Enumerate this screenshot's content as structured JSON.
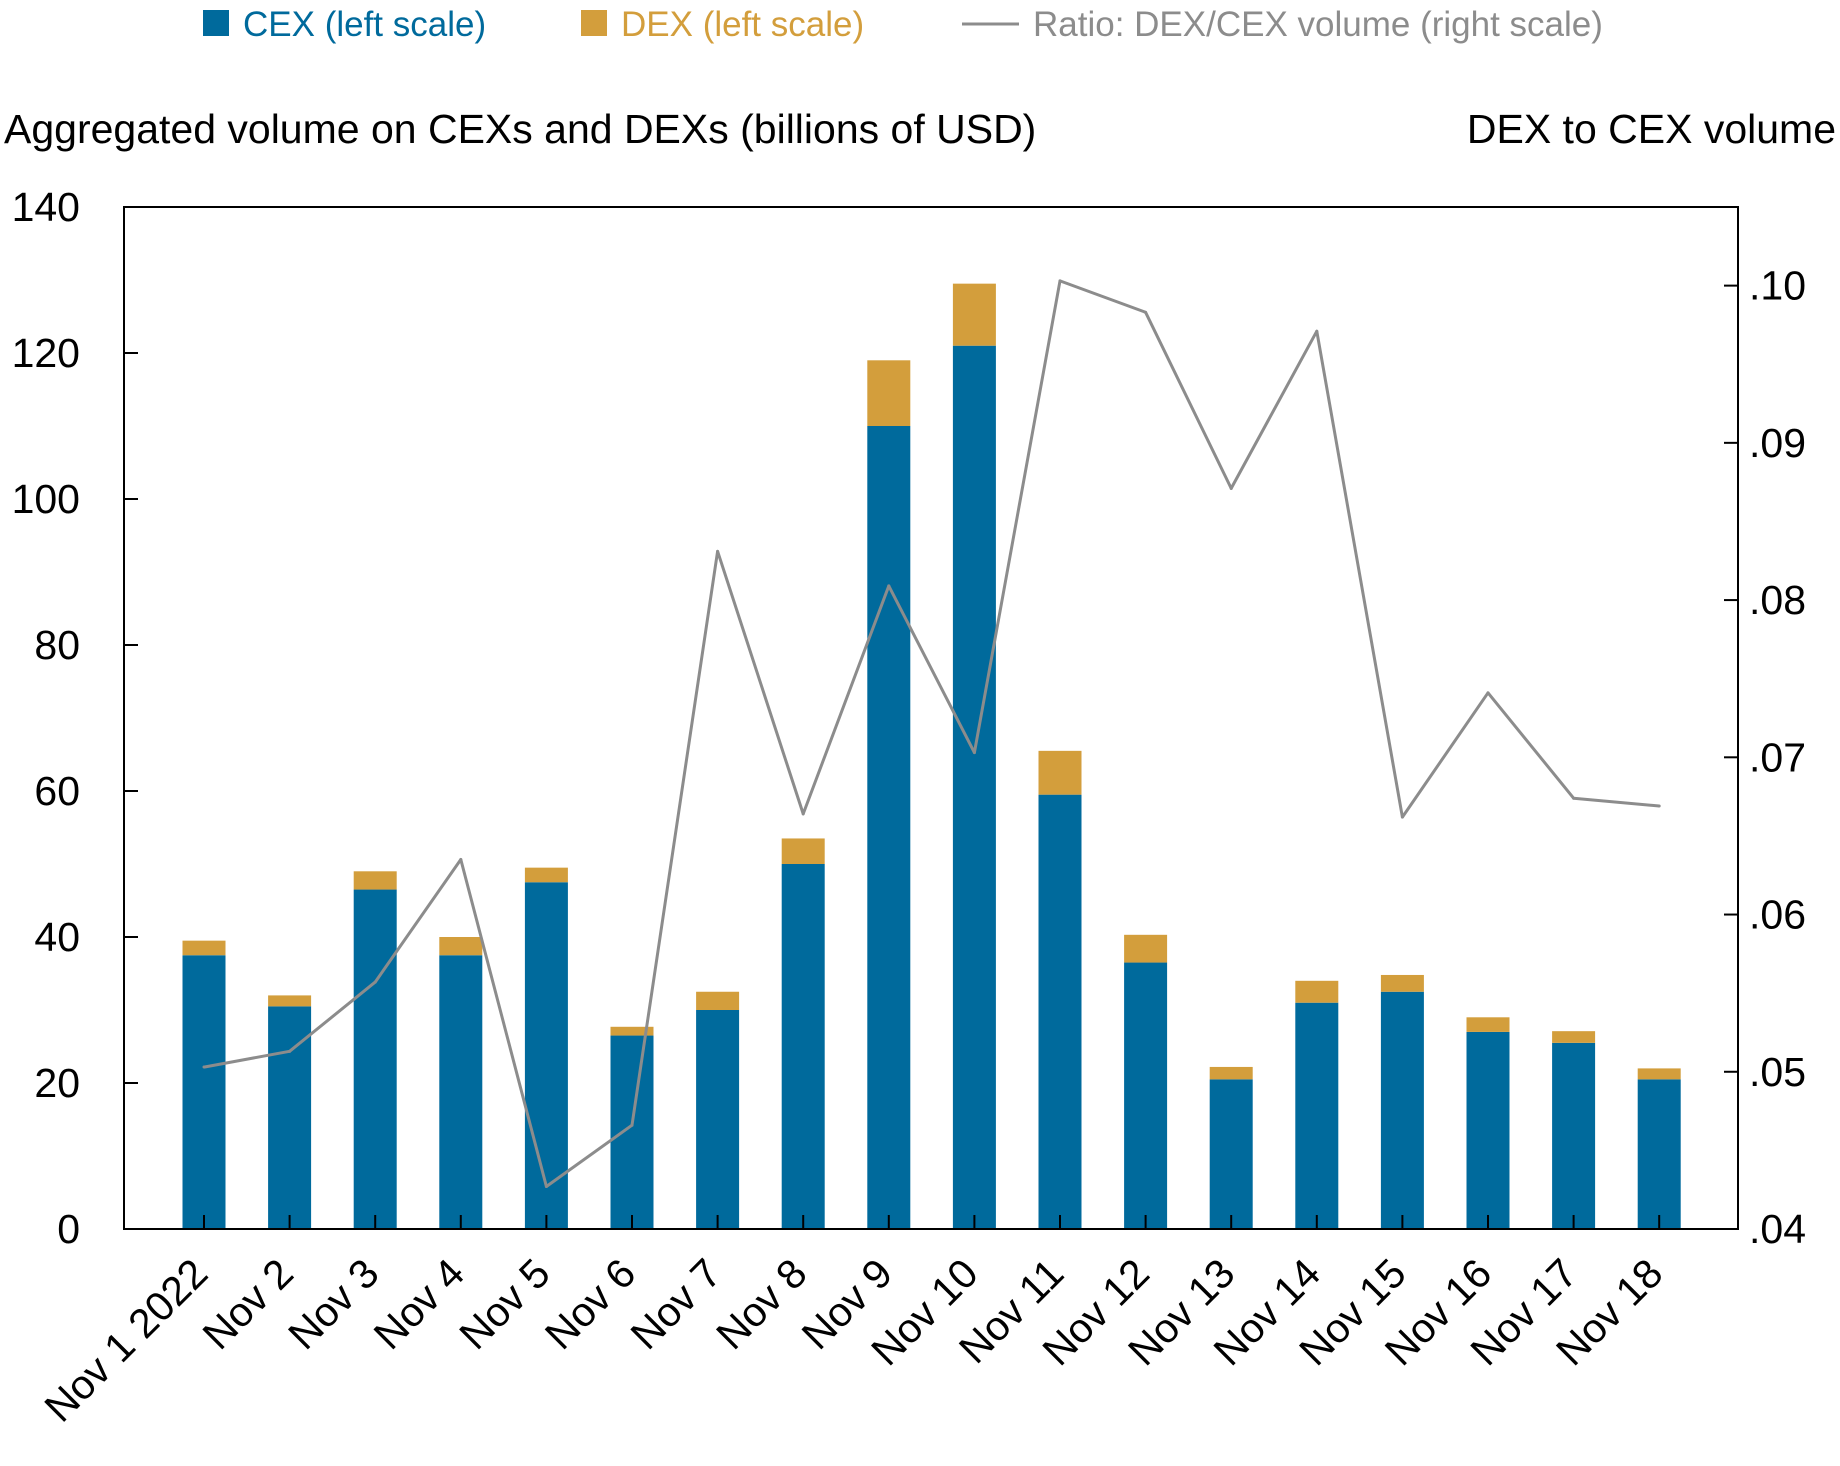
{
  "chart_data": {
    "type": "bar",
    "stacked": true,
    "categories": [
      "Nov 1 2022",
      "Nov 2",
      "Nov 3",
      "Nov 4",
      "Nov 5",
      "Nov 6",
      "Nov 7",
      "Nov 8",
      "Nov 9",
      "Nov 10",
      "Nov 11",
      "Nov 12",
      "Nov 13",
      "Nov 14",
      "Nov 15",
      "Nov 16",
      "Nov 17",
      "Nov 18"
    ],
    "series": [
      {
        "name": "CEX (left scale)",
        "axis": "left",
        "kind": "bar",
        "color": "#006a9c",
        "values": [
          37.5,
          30.5,
          46.5,
          37.5,
          47.5,
          26.5,
          30,
          50,
          110,
          121,
          59.5,
          36.5,
          20.5,
          31,
          32.5,
          27,
          25.5,
          20.5
        ]
      },
      {
        "name": "DEX (left scale)",
        "axis": "left",
        "kind": "bar",
        "color": "#d39e3c",
        "values": [
          2,
          1.5,
          2.5,
          2.5,
          2,
          1.2,
          2.5,
          3.5,
          9,
          8.5,
          6,
          3.8,
          1.7,
          3,
          2.3,
          2,
          1.6,
          1.5
        ]
      },
      {
        "name": "Ratio: DEX/CEX volume (right scale)",
        "axis": "right",
        "kind": "line",
        "color": "#8c8c8c",
        "values": [
          0.0503,
          0.0513,
          0.0557,
          0.0635,
          0.0427,
          0.0466,
          0.0831,
          0.0664,
          0.0809,
          0.0703,
          0.1003,
          0.0983,
          0.0871,
          0.0971,
          0.0662,
          0.0741,
          0.0674,
          0.0669
        ]
      }
    ],
    "title_left": "Aggregated volume on CEXs and DEXs (billions of USD)",
    "title_right": "DEX to CEX volume",
    "ylim": [
      0,
      140
    ],
    "y_ticks": [
      0,
      20,
      40,
      60,
      80,
      100,
      120,
      140
    ],
    "y_tick_labels": [
      "0",
      "20",
      "40",
      "60",
      "80",
      "100",
      "120",
      "140"
    ],
    "y2lim": [
      0.04,
      0.105
    ],
    "y2_ticks": [
      0.04,
      0.05,
      0.06,
      0.07,
      0.08,
      0.09,
      0.1
    ],
    "y2_tick_labels": [
      ".04",
      ".05",
      ".06",
      ".07",
      ".08",
      ".09",
      ".10"
    ],
    "legend": [
      {
        "label": "CEX (left scale)",
        "color": "#006a9c",
        "marker": "square"
      },
      {
        "label": "DEX (left scale)",
        "color": "#d39e3c",
        "marker": "square"
      },
      {
        "label": "Ratio: DEX/CEX volume (right scale)",
        "color": "#8c8c8c",
        "marker": "line"
      }
    ],
    "legend_position": "top",
    "grid": false
  }
}
